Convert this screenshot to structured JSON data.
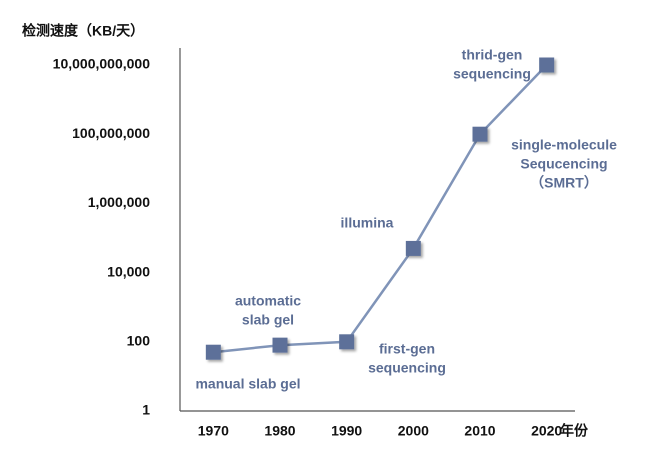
{
  "chart_data": {
    "type": "line",
    "ylabel": "检测速度（KB/天）",
    "xlabel": "年份",
    "x": [
      1970,
      1980,
      1990,
      2000,
      2010,
      2020
    ],
    "series": [
      {
        "color": "#5d7099",
        "line_color": "#8094b8",
        "values": [
          50,
          80,
          100,
          50000,
          100000000,
          10000000000
        ]
      }
    ],
    "xlim": [
      1965,
      2025
    ],
    "xticks": [
      1970,
      1980,
      1990,
      2000,
      2010,
      2020
    ],
    "ylim": [
      1,
      30000000000
    ],
    "ylog": true,
    "yticks": [
      1,
      100,
      {
        "value": 10000,
        "label": "10,000"
      },
      {
        "value": 1000000,
        "label": "1,000,000"
      },
      {
        "value": 100000000,
        "label": "100,000,000"
      },
      {
        "value": 10000000000,
        "label": "10,000,000,000"
      }
    ],
    "grid": false,
    "annotations": [
      {
        "text": [
          "manual  slab gel"
        ]
      },
      {
        "text": [
          "automatic",
          "slab gel"
        ]
      },
      {
        "text": [
          "first-gen",
          "sequencing"
        ]
      },
      {
        "text": [
          "illumina"
        ]
      },
      {
        "text": [
          "single-molecule",
          "Sequcencing",
          "（SMRT）"
        ]
      },
      {
        "text": [
          "thrid-gen",
          "sequencing"
        ]
      }
    ]
  }
}
